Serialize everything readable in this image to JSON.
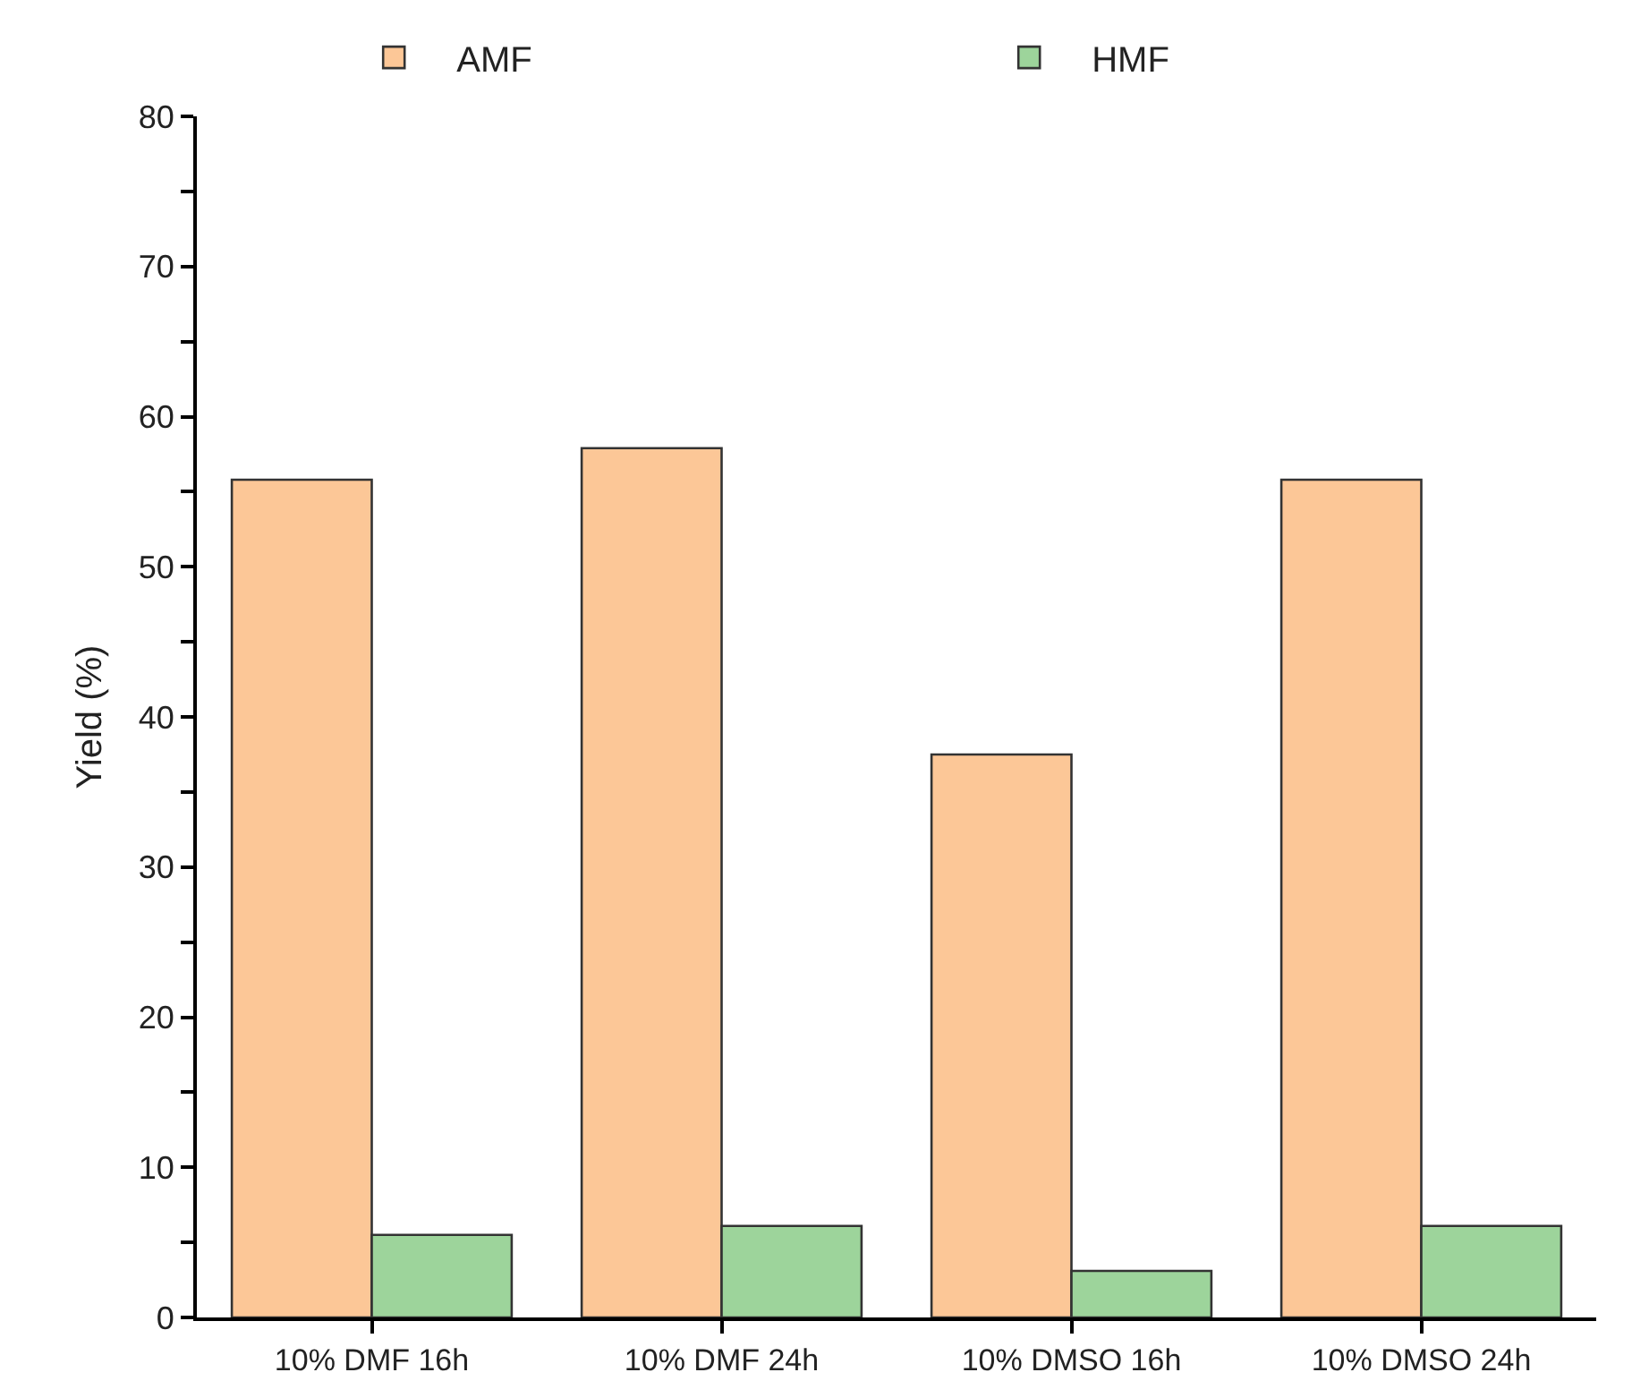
{
  "chart_data": {
    "type": "bar",
    "ylabel": "Yield (%)",
    "categories": [
      "10% DMF 16h",
      "10% DMF 24h",
      "10% DMSO 16h",
      "10% DMSO 24h"
    ],
    "series": [
      {
        "name": "AMF",
        "color": "#fcc797",
        "values": [
          55.8,
          57.9,
          37.5,
          55.8
        ]
      },
      {
        "name": "HMF",
        "color": "#9dd49b",
        "values": [
          5.5,
          6.1,
          3.1,
          6.1
        ]
      }
    ],
    "ylim": [
      0,
      80
    ],
    "yticks": [
      0,
      {
        "value": 5,
        "label": null
      },
      10,
      {
        "value": 15,
        "label": null
      },
      20,
      {
        "value": 25,
        "label": null
      },
      30,
      {
        "value": 35,
        "label": null
      },
      40,
      {
        "value": 45,
        "label": null
      },
      50,
      {
        "value": 55,
        "label": null
      },
      60,
      {
        "value": 65,
        "label": null
      },
      70,
      {
        "value": 75,
        "label": null
      },
      80
    ],
    "legend": "top"
  }
}
